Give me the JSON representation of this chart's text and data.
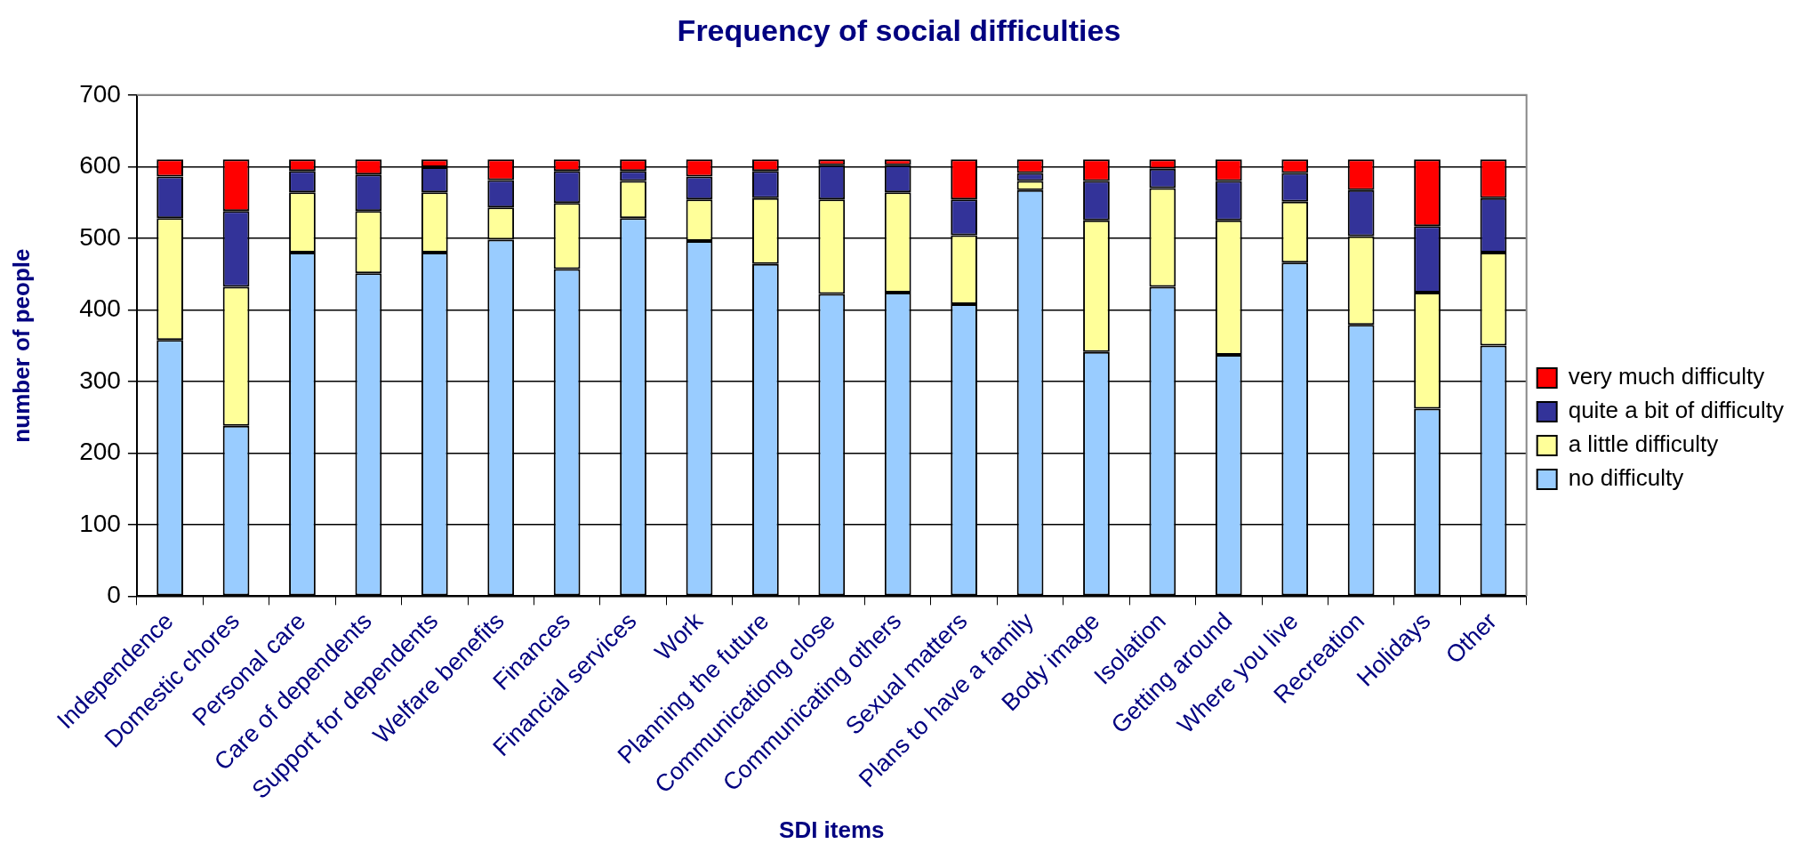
{
  "chart_data": {
    "type": "bar",
    "title": "Frequency of social difficulties",
    "xlabel": "SDI items",
    "ylabel": "number of people",
    "categories": [
      "Independence",
      "Domestic chores",
      "Personal care",
      "Care of dependents",
      "Support for dependents",
      "Welfare benefits",
      "Finances",
      "Financial services",
      "Work",
      "Planning the future",
      "Communicationg close",
      "Communicating others",
      "Sexual matters",
      "Plans to have a family",
      "Body image",
      "Isolation",
      "Getting around",
      "Where you live",
      "Recreation",
      "Holidays",
      "Other"
    ],
    "stacked": true,
    "series": [
      {
        "name": "no difficulty",
        "color": "#99ccff",
        "values": [
          358,
          238,
          480,
          451,
          480,
          498,
          457,
          528,
          496,
          464,
          422,
          424,
          408,
          567,
          341,
          432,
          337,
          466,
          379,
          262,
          350
        ]
      },
      {
        "name": "a little difficulty",
        "color": "#ffff99",
        "values": [
          170,
          194,
          84,
          87,
          84,
          45,
          92,
          52,
          58,
          92,
          132,
          140,
          96,
          13,
          184,
          138,
          188,
          85,
          124,
          162,
          130
        ]
      },
      {
        "name": "quite a bit of difficulty",
        "color": "#333399",
        "values": [
          58,
          106,
          30,
          51,
          35,
          38,
          45,
          14,
          32,
          38,
          48,
          38,
          50,
          11,
          55,
          27,
          55,
          40,
          64,
          93,
          76
        ]
      },
      {
        "name": "very much difficulty",
        "color": "#ff0000",
        "values": [
          24,
          72,
          16,
          21,
          11,
          29,
          16,
          16,
          24,
          16,
          8,
          8,
          56,
          19,
          30,
          13,
          30,
          19,
          43,
          93,
          54
        ]
      }
    ],
    "ylim": [
      0,
      700
    ],
    "yticks": [
      0,
      100,
      200,
      300,
      400,
      500,
      600,
      700
    ],
    "grid": "y",
    "legend": "right"
  }
}
